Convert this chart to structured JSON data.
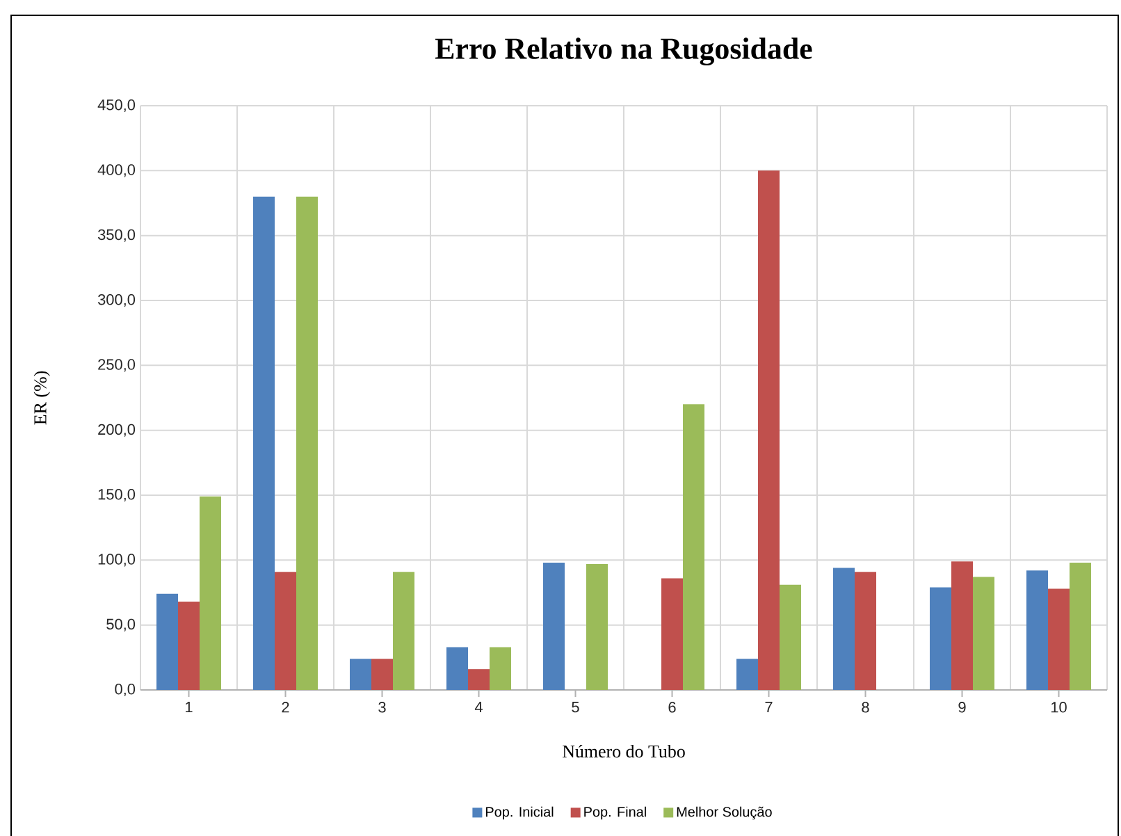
{
  "chart_data": {
    "type": "bar",
    "title": "Erro Relativo na Rugosidade",
    "xlabel": "Número do Tubo",
    "ylabel": "ER (%)",
    "categories": [
      "1",
      "2",
      "3",
      "4",
      "5",
      "6",
      "7",
      "8",
      "9",
      "10"
    ],
    "series": [
      {
        "name": "Pop. Inicial",
        "color": "#4f81bd",
        "values": [
          74,
          380,
          24,
          33,
          98,
          null,
          24,
          94,
          79,
          92
        ]
      },
      {
        "name": "Pop. Final",
        "color": "#c0504d",
        "values": [
          68,
          91,
          24,
          16,
          null,
          86,
          400,
          91,
          99,
          78
        ]
      },
      {
        "name": "Melhor Solução",
        "color": "#9bbb59",
        "values": [
          149,
          380,
          91,
          33,
          97,
          220,
          81,
          null,
          87,
          98
        ]
      }
    ],
    "ylim": [
      0,
      450
    ],
    "yticks": [
      {
        "value": 0,
        "label": "0,0"
      },
      {
        "value": 50,
        "label": "50,0"
      },
      {
        "value": 100,
        "label": "100,0"
      },
      {
        "value": 150,
        "label": "150,0"
      },
      {
        "value": 200,
        "label": "200,0"
      },
      {
        "value": 250,
        "label": "250,0"
      },
      {
        "value": 300,
        "label": "300,0"
      },
      {
        "value": 350,
        "label": "350,0"
      },
      {
        "value": 400,
        "label": "400,0"
      },
      {
        "value": 450,
        "label": "450,0"
      }
    ],
    "grid": true,
    "legend": "bottom"
  }
}
